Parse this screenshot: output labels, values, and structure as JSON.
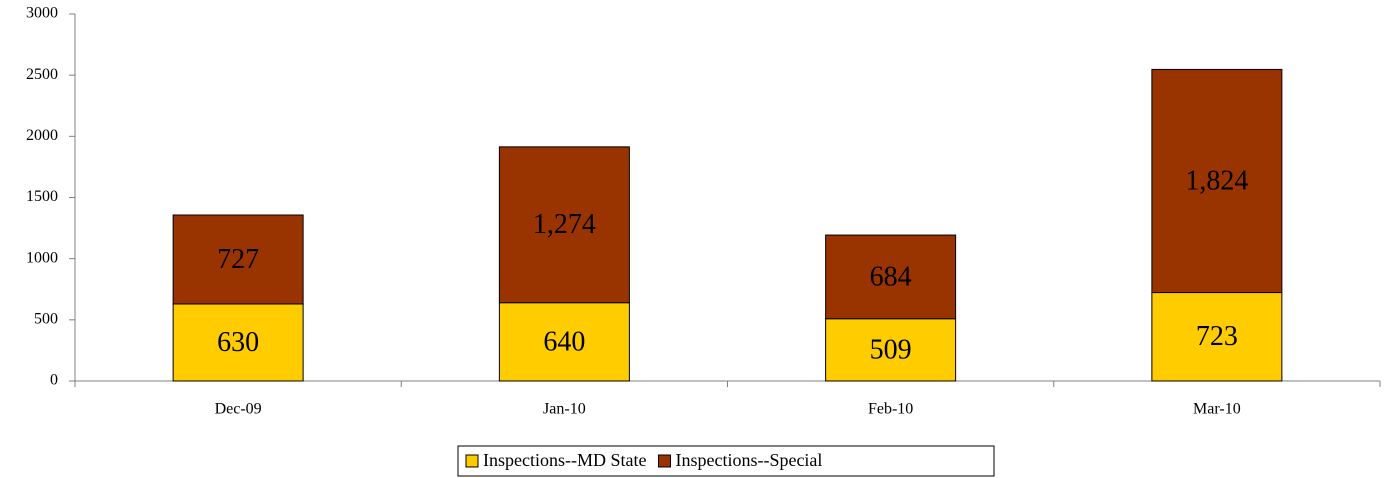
{
  "chart_data": {
    "type": "stacked_bar",
    "categories": [
      "Dec-09",
      "Jan-10",
      "Feb-10",
      "Mar-10"
    ],
    "series": [
      {
        "name": "Inspections--MD State",
        "color": "#ffcc00",
        "values": [
          630,
          640,
          509,
          723
        ]
      },
      {
        "name": "Inspections--Special",
        "color": "#993300",
        "values": [
          727,
          1274,
          684,
          1824
        ],
        "value_labels": [
          "727",
          "1,274",
          "684",
          "1,824"
        ]
      }
    ],
    "ylim": [
      0,
      3000
    ],
    "yticks": [
      0,
      500,
      1000,
      1500,
      2000,
      2500,
      3000
    ],
    "legend": "bottom"
  }
}
